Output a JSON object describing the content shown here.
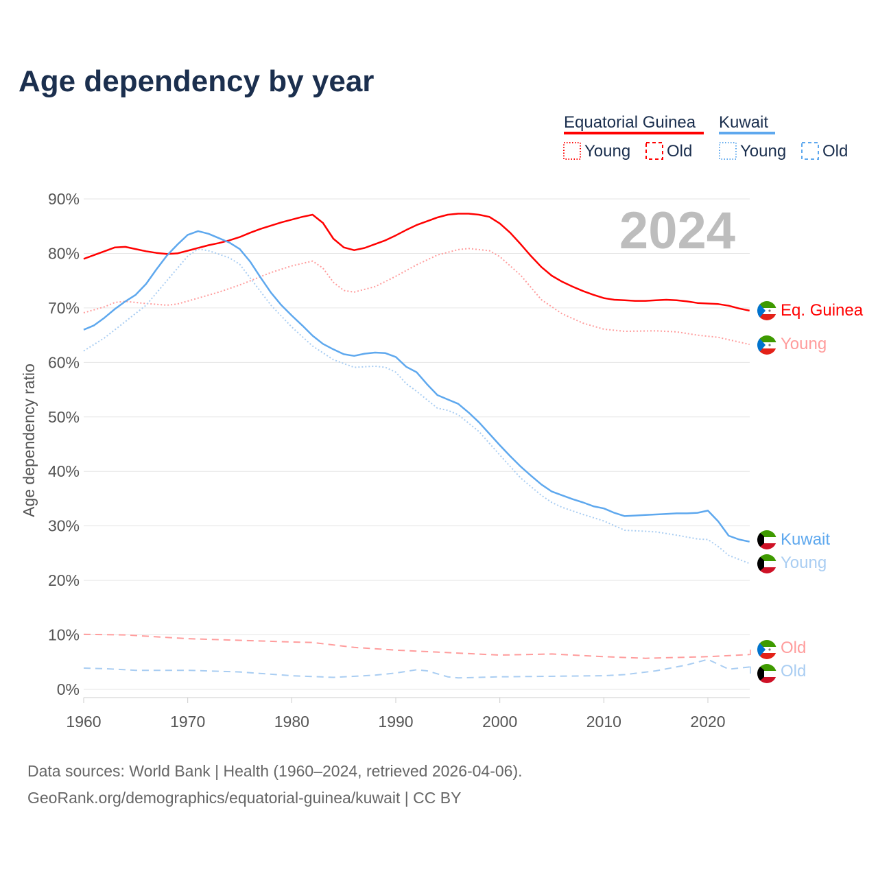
{
  "chart_data": {
    "type": "line",
    "title": "Age dependency by year",
    "xlabel": "",
    "ylabel": "Age dependency ratio",
    "xlim": [
      1960,
      2024
    ],
    "ylim": [
      0,
      90
    ],
    "x_ticks": [
      "1960",
      "1970",
      "1980",
      "1990",
      "2000",
      "2010",
      "2020"
    ],
    "y_ticks": [
      "0%",
      "10%",
      "20%",
      "30%",
      "40%",
      "50%",
      "60%",
      "70%",
      "80%",
      "90%"
    ],
    "grid": true,
    "year_badge": "2024",
    "legend": {
      "placement": "top-right",
      "countries": [
        {
          "name": "Equatorial Guinea",
          "color": "#ff0000",
          "young": "Young",
          "old": "Old"
        },
        {
          "name": "Kuwait",
          "color": "#5ea8ee",
          "young": "Young",
          "old": "Old"
        }
      ]
    },
    "series": [
      {
        "name": "Equatorial Guinea",
        "end_label": "Eq. Guinea",
        "country": "eg",
        "style": "solid",
        "color": "#ff0000",
        "points": [
          [
            1960,
            79.0
          ],
          [
            1961,
            79.7
          ],
          [
            1962,
            80.4
          ],
          [
            1963,
            81.1
          ],
          [
            1964,
            81.2
          ],
          [
            1965,
            80.8
          ],
          [
            1966,
            80.4
          ],
          [
            1967,
            80.1
          ],
          [
            1968,
            79.9
          ],
          [
            1969,
            80.0
          ],
          [
            1970,
            80.5
          ],
          [
            1971,
            81.0
          ],
          [
            1972,
            81.5
          ],
          [
            1973,
            81.9
          ],
          [
            1974,
            82.4
          ],
          [
            1975,
            83.0
          ],
          [
            1976,
            83.8
          ],
          [
            1977,
            84.5
          ],
          [
            1978,
            85.1
          ],
          [
            1979,
            85.7
          ],
          [
            1980,
            86.2
          ],
          [
            1981,
            86.7
          ],
          [
            1982,
            87.1
          ],
          [
            1983,
            85.6
          ],
          [
            1984,
            82.7
          ],
          [
            1985,
            81.1
          ],
          [
            1986,
            80.6
          ],
          [
            1987,
            81.0
          ],
          [
            1988,
            81.7
          ],
          [
            1989,
            82.4
          ],
          [
            1990,
            83.3
          ],
          [
            1991,
            84.3
          ],
          [
            1992,
            85.2
          ],
          [
            1993,
            85.9
          ],
          [
            1994,
            86.6
          ],
          [
            1995,
            87.1
          ],
          [
            1996,
            87.3
          ],
          [
            1997,
            87.3
          ],
          [
            1998,
            87.1
          ],
          [
            1999,
            86.7
          ],
          [
            2000,
            85.5
          ],
          [
            2001,
            83.8
          ],
          [
            2002,
            81.7
          ],
          [
            2003,
            79.5
          ],
          [
            2004,
            77.5
          ],
          [
            2005,
            75.9
          ],
          [
            2006,
            74.8
          ],
          [
            2007,
            73.9
          ],
          [
            2008,
            73.1
          ],
          [
            2009,
            72.4
          ],
          [
            2010,
            71.8
          ],
          [
            2011,
            71.5
          ],
          [
            2012,
            71.4
          ],
          [
            2013,
            71.3
          ],
          [
            2014,
            71.3
          ],
          [
            2015,
            71.4
          ],
          [
            2016,
            71.5
          ],
          [
            2017,
            71.4
          ],
          [
            2018,
            71.2
          ],
          [
            2019,
            70.9
          ],
          [
            2020,
            70.8
          ],
          [
            2021,
            70.7
          ],
          [
            2022,
            70.4
          ],
          [
            2023,
            69.9
          ],
          [
            2024,
            69.5
          ]
        ]
      },
      {
        "name": "Equatorial Guinea Young",
        "end_label": "Young",
        "country": "eg",
        "style": "dotted",
        "color": "#ff9c9c",
        "points": [
          [
            1960,
            69.1
          ],
          [
            1962,
            70.2
          ],
          [
            1963,
            71.0
          ],
          [
            1964,
            71.2
          ],
          [
            1966,
            70.8
          ],
          [
            1968,
            70.5
          ],
          [
            1969,
            70.7
          ],
          [
            1971,
            71.8
          ],
          [
            1973,
            72.9
          ],
          [
            1975,
            74.2
          ],
          [
            1978,
            76.5
          ],
          [
            1980,
            77.7
          ],
          [
            1982,
            78.6
          ],
          [
            1983,
            77.3
          ],
          [
            1984,
            74.7
          ],
          [
            1985,
            73.2
          ],
          [
            1986,
            72.9
          ],
          [
            1988,
            73.9
          ],
          [
            1990,
            75.8
          ],
          [
            1992,
            77.9
          ],
          [
            1994,
            79.7
          ],
          [
            1996,
            80.7
          ],
          [
            1997,
            80.9
          ],
          [
            1999,
            80.5
          ],
          [
            2000,
            79.4
          ],
          [
            2002,
            76.0
          ],
          [
            2004,
            71.5
          ],
          [
            2006,
            68.9
          ],
          [
            2008,
            67.2
          ],
          [
            2010,
            66.1
          ],
          [
            2012,
            65.7
          ],
          [
            2015,
            65.8
          ],
          [
            2017,
            65.6
          ],
          [
            2019,
            65.0
          ],
          [
            2021,
            64.6
          ],
          [
            2024,
            63.3
          ]
        ]
      },
      {
        "name": "Equatorial Guinea Old",
        "end_label": "Old",
        "country": "eg",
        "style": "dashed",
        "color": "#ff9c9c",
        "points": [
          [
            1960,
            10.1
          ],
          [
            1964,
            10.0
          ],
          [
            1970,
            9.3
          ],
          [
            1980,
            8.7
          ],
          [
            1982,
            8.6
          ],
          [
            1986,
            7.7
          ],
          [
            1990,
            7.2
          ],
          [
            2000,
            6.3
          ],
          [
            2005,
            6.5
          ],
          [
            2010,
            6.0
          ],
          [
            2014,
            5.7
          ],
          [
            2020,
            6.0
          ],
          [
            2024,
            6.4
          ]
        ]
      },
      {
        "name": "Kuwait",
        "end_label": "Kuwait",
        "country": "kw",
        "style": "solid",
        "color": "#5ea8ee",
        "points": [
          [
            1960,
            66.0
          ],
          [
            1961,
            66.8
          ],
          [
            1962,
            68.2
          ],
          [
            1963,
            69.8
          ],
          [
            1964,
            71.2
          ],
          [
            1965,
            72.4
          ],
          [
            1966,
            74.4
          ],
          [
            1967,
            77.1
          ],
          [
            1968,
            79.6
          ],
          [
            1969,
            81.6
          ],
          [
            1970,
            83.4
          ],
          [
            1971,
            84.1
          ],
          [
            1972,
            83.6
          ],
          [
            1973,
            82.8
          ],
          [
            1974,
            82.0
          ],
          [
            1975,
            80.8
          ],
          [
            1976,
            78.5
          ],
          [
            1977,
            75.6
          ],
          [
            1978,
            72.8
          ],
          [
            1979,
            70.5
          ],
          [
            1980,
            68.6
          ],
          [
            1981,
            66.8
          ],
          [
            1982,
            64.9
          ],
          [
            1983,
            63.4
          ],
          [
            1984,
            62.4
          ],
          [
            1985,
            61.5
          ],
          [
            1986,
            61.2
          ],
          [
            1987,
            61.6
          ],
          [
            1988,
            61.8
          ],
          [
            1989,
            61.7
          ],
          [
            1990,
            61.0
          ],
          [
            1991,
            59.2
          ],
          [
            1992,
            58.2
          ],
          [
            1993,
            56.0
          ],
          [
            1994,
            54.0
          ],
          [
            1995,
            53.2
          ],
          [
            1996,
            52.4
          ],
          [
            1997,
            50.8
          ],
          [
            1998,
            49.0
          ],
          [
            1999,
            46.9
          ],
          [
            2000,
            44.8
          ],
          [
            2001,
            42.8
          ],
          [
            2002,
            40.9
          ],
          [
            2003,
            39.2
          ],
          [
            2004,
            37.6
          ],
          [
            2005,
            36.3
          ],
          [
            2006,
            35.6
          ],
          [
            2007,
            34.9
          ],
          [
            2008,
            34.3
          ],
          [
            2009,
            33.6
          ],
          [
            2010,
            33.2
          ],
          [
            2011,
            32.4
          ],
          [
            2012,
            31.8
          ],
          [
            2013,
            31.9
          ],
          [
            2014,
            32.0
          ],
          [
            2015,
            32.1
          ],
          [
            2016,
            32.2
          ],
          [
            2017,
            32.3
          ],
          [
            2018,
            32.3
          ],
          [
            2019,
            32.4
          ],
          [
            2020,
            32.8
          ],
          [
            2021,
            30.8
          ],
          [
            2022,
            28.2
          ],
          [
            2023,
            27.5
          ],
          [
            2024,
            27.1
          ]
        ]
      },
      {
        "name": "Kuwait Young",
        "end_label": "Young",
        "country": "kw",
        "style": "dotted",
        "color": "#a9cdf2",
        "points": [
          [
            1960,
            62.1
          ],
          [
            1962,
            64.5
          ],
          [
            1964,
            67.5
          ],
          [
            1966,
            70.5
          ],
          [
            1968,
            75.0
          ],
          [
            1970,
            79.5
          ],
          [
            1971,
            80.8
          ],
          [
            1972,
            80.5
          ],
          [
            1974,
            79.2
          ],
          [
            1975,
            78.0
          ],
          [
            1976,
            75.5
          ],
          [
            1978,
            70.5
          ],
          [
            1980,
            66.5
          ],
          [
            1982,
            63.0
          ],
          [
            1984,
            60.5
          ],
          [
            1986,
            59.1
          ],
          [
            1988,
            59.3
          ],
          [
            1989,
            59.1
          ],
          [
            1990,
            58.2
          ],
          [
            1991,
            56.1
          ],
          [
            1992,
            54.7
          ],
          [
            1994,
            51.6
          ],
          [
            1995,
            51.2
          ],
          [
            1996,
            50.4
          ],
          [
            1998,
            47.3
          ],
          [
            2000,
            43.0
          ],
          [
            2002,
            38.8
          ],
          [
            2004,
            35.6
          ],
          [
            2005,
            34.3
          ],
          [
            2006,
            33.4
          ],
          [
            2008,
            32.1
          ],
          [
            2010,
            30.9
          ],
          [
            2012,
            29.2
          ],
          [
            2015,
            28.9
          ],
          [
            2017,
            28.3
          ],
          [
            2019,
            27.6
          ],
          [
            2020,
            27.5
          ],
          [
            2021,
            26.2
          ],
          [
            2022,
            24.6
          ],
          [
            2024,
            23.1
          ]
        ]
      },
      {
        "name": "Kuwait Old",
        "end_label": "Old",
        "country": "kw",
        "style": "dashed",
        "color": "#a9cdf2",
        "points": [
          [
            1960,
            3.9
          ],
          [
            1962,
            3.8
          ],
          [
            1965,
            3.5
          ],
          [
            1970,
            3.5
          ],
          [
            1975,
            3.2
          ],
          [
            1980,
            2.5
          ],
          [
            1984,
            2.2
          ],
          [
            1988,
            2.6
          ],
          [
            1990,
            3.0
          ],
          [
            1992,
            3.6
          ],
          [
            1993,
            3.4
          ],
          [
            1995,
            2.3
          ],
          [
            1996,
            2.1
          ],
          [
            2000,
            2.3
          ],
          [
            2010,
            2.5
          ],
          [
            2012,
            2.7
          ],
          [
            2015,
            3.4
          ],
          [
            2018,
            4.5
          ],
          [
            2020,
            5.5
          ],
          [
            2022,
            3.7
          ],
          [
            2024,
            4.1
          ]
        ]
      }
    ]
  },
  "footer": {
    "line1": "Data sources: World Bank | Health (1960–2024, retrieved 2026-04-06).",
    "line2": "GeoRank.org/demographics/equatorial-guinea/kuwait | CC BY"
  }
}
